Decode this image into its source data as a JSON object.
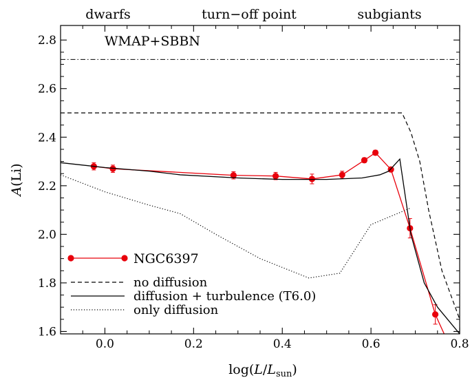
{
  "chart_data": {
    "type": "line",
    "title": "",
    "xlabel_parts": {
      "prefix": "log(",
      "var": "L",
      "slash": "/",
      "var2": "L",
      "sub": "sun",
      "suffix": ")"
    },
    "ylabel_parts": {
      "var": "A",
      "rest": "(Li)"
    },
    "xlim": [
      -0.1,
      0.8
    ],
    "ylim": [
      1.59,
      2.86
    ],
    "xticks": [
      0.0,
      0.2,
      0.4,
      0.6,
      0.8
    ],
    "xtick_labels": [
      "0.0",
      "0.2",
      "0.4",
      "0.6",
      "0.8"
    ],
    "yticks": [
      1.6,
      1.8,
      2.0,
      2.2,
      2.4,
      2.6,
      2.8
    ],
    "ytick_labels": [
      "1.6",
      "1.8",
      "2.0",
      "2.2",
      "2.4",
      "2.6",
      "2.8"
    ],
    "top_labels": [
      "dwarfs",
      "turn−off point",
      "subgiants"
    ],
    "reference_line": {
      "label": "WMAP+SBBN",
      "y": 2.72,
      "style": "dashdot"
    },
    "series": [
      {
        "name": "NGC6397",
        "style": "markers",
        "color": "#e8000b",
        "points": [
          {
            "x": -0.025,
            "y": 2.28,
            "err": 0.015
          },
          {
            "x": 0.018,
            "y": 2.27,
            "err": 0.015
          },
          {
            "x": 0.29,
            "y": 2.243,
            "err": 0.015
          },
          {
            "x": 0.385,
            "y": 2.24,
            "err": 0.015
          },
          {
            "x": 0.467,
            "y": 2.228,
            "err": 0.02
          },
          {
            "x": 0.535,
            "y": 2.245,
            "err": 0.015
          },
          {
            "x": 0.585,
            "y": 2.305,
            "err": 0.01
          },
          {
            "x": 0.61,
            "y": 2.336,
            "err": 0.01
          },
          {
            "x": 0.645,
            "y": 2.267,
            "err": 0.01
          },
          {
            "x": 0.688,
            "y": 2.025,
            "err": 0.04
          },
          {
            "x": 0.745,
            "y": 1.67,
            "err": 0.04
          },
          {
            "x": 0.775,
            "y": 1.55,
            "err": 0.03
          }
        ]
      },
      {
        "name": "no diffusion",
        "style": "dashed",
        "color": "#000000",
        "x": [
          -0.1,
          0.66,
          0.67,
          0.69,
          0.71,
          0.73,
          0.76,
          0.8
        ],
        "y": [
          2.5,
          2.5,
          2.5,
          2.42,
          2.3,
          2.1,
          1.85,
          1.65
        ]
      },
      {
        "name": "diffusion + turbulence (T6.0)",
        "style": "solid",
        "color": "#000000",
        "x": [
          -0.1,
          0.0,
          0.1,
          0.17,
          0.3,
          0.4,
          0.5,
          0.58,
          0.62,
          0.64,
          0.665,
          0.69,
          0.72,
          0.75,
          0.8
        ],
        "y": [
          2.295,
          2.275,
          2.26,
          2.245,
          2.232,
          2.226,
          2.226,
          2.232,
          2.245,
          2.26,
          2.31,
          2.0,
          1.8,
          1.7,
          1.59
        ]
      },
      {
        "name": "only diffusion",
        "style": "dotted",
        "color": "#000000",
        "x": [
          -0.1,
          0.0,
          0.1,
          0.17,
          0.25,
          0.35,
          0.46,
          0.53,
          0.6,
          0.685,
          0.69
        ],
        "y": [
          2.245,
          2.175,
          2.12,
          2.085,
          2.0,
          1.9,
          1.82,
          1.84,
          2.04,
          2.105,
          2.11
        ]
      }
    ],
    "legend_position": "bottom-left"
  }
}
